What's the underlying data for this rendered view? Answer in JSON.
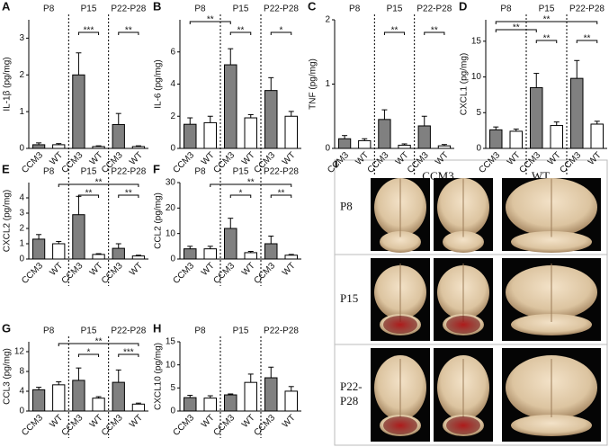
{
  "chart_data": [
    {
      "type": "bar",
      "label": "A",
      "ylabel": "IL-1β (pg/mg)",
      "groups": [
        "P8",
        "P15",
        "P22-P28"
      ],
      "categories": [
        "CCM3",
        "WT",
        "CCM3",
        "WT",
        "CCM3",
        "WT"
      ],
      "values": [
        0.1,
        0.1,
        2.0,
        0.05,
        0.65,
        0.05
      ],
      "errors": [
        0.05,
        0.03,
        0.6,
        0.02,
        0.3,
        0.02
      ],
      "colors": [
        "#808080",
        "#ffffff",
        "#808080",
        "#ffffff",
        "#808080",
        "#ffffff"
      ],
      "ylim": [
        0,
        3.5
      ],
      "yticks": [
        0,
        1,
        2,
        3
      ],
      "significance": [
        {
          "text": "***",
          "pair": [
            2,
            3
          ]
        },
        {
          "text": "**",
          "pair": [
            4,
            5
          ]
        }
      ]
    },
    {
      "type": "bar",
      "label": "B",
      "ylabel": "IL-6 (pg/mg)",
      "groups": [
        "P8",
        "P15",
        "P22-P28"
      ],
      "categories": [
        "CCM3",
        "WT",
        "CCM3",
        "WT",
        "CCM3",
        "WT"
      ],
      "values": [
        1.5,
        1.6,
        5.2,
        1.9,
        3.6,
        2.0
      ],
      "errors": [
        0.4,
        0.4,
        1.0,
        0.2,
        0.8,
        0.3
      ],
      "colors": [
        "#808080",
        "#ffffff",
        "#808080",
        "#ffffff",
        "#808080",
        "#ffffff"
      ],
      "ylim": [
        0,
        8
      ],
      "yticks": [
        0,
        2,
        4,
        6
      ],
      "significance": [
        {
          "text": "**",
          "pair": [
            0,
            2
          ]
        },
        {
          "text": "**",
          "pair": [
            2,
            3
          ]
        },
        {
          "text": "*",
          "pair": [
            4,
            5
          ]
        }
      ]
    },
    {
      "type": "bar",
      "label": "C",
      "ylabel": "TNF (pg/mg)",
      "groups": [
        "P8",
        "P15",
        "P22-P28"
      ],
      "categories": [
        "CCM3",
        "WT",
        "CCM3",
        "WT",
        "CCM3",
        "WT"
      ],
      "values": [
        0.15,
        0.12,
        0.45,
        0.05,
        0.35,
        0.04
      ],
      "errors": [
        0.05,
        0.03,
        0.15,
        0.02,
        0.15,
        0.02
      ],
      "colors": [
        "#808080",
        "#ffffff",
        "#808080",
        "#ffffff",
        "#808080",
        "#ffffff"
      ],
      "ylim": [
        0,
        2
      ],
      "yticks": [
        0,
        1,
        2
      ],
      "significance": [
        {
          "text": "**",
          "pair": [
            2,
            3
          ]
        },
        {
          "text": "**",
          "pair": [
            4,
            5
          ]
        }
      ]
    },
    {
      "type": "bar",
      "label": "D",
      "ylabel": "CXCL1 (pg/mg)",
      "groups": [
        "P8",
        "P15",
        "P22-P28"
      ],
      "categories": [
        "CCM3",
        "WT",
        "CCM3",
        "WT",
        "CCM3",
        "WT"
      ],
      "values": [
        2.6,
        2.4,
        8.5,
        3.2,
        9.8,
        3.4
      ],
      "errors": [
        0.4,
        0.3,
        2.0,
        0.5,
        2.5,
        0.4
      ],
      "colors": [
        "#808080",
        "#ffffff",
        "#808080",
        "#ffffff",
        "#808080",
        "#ffffff"
      ],
      "ylim": [
        0,
        18
      ],
      "yticks": [
        0,
        5,
        10,
        15
      ],
      "significance": [
        {
          "text": "**",
          "pair": [
            0,
            5
          ]
        },
        {
          "text": "**",
          "pair": [
            0,
            2
          ]
        },
        {
          "text": "**",
          "pair": [
            2,
            3
          ]
        },
        {
          "text": "**",
          "pair": [
            4,
            5
          ]
        }
      ]
    },
    {
      "type": "bar",
      "label": "E",
      "ylabel": "CXCL2 (pg/mg)",
      "groups": [
        "P8",
        "P15",
        "P22-P28"
      ],
      "categories": [
        "CCM3",
        "WT",
        "CCM3",
        "WT",
        "CCM3",
        "WT"
      ],
      "values": [
        1.3,
        1.0,
        2.9,
        0.3,
        0.7,
        0.2
      ],
      "errors": [
        0.3,
        0.15,
        1.2,
        0.05,
        0.3,
        0.05
      ],
      "colors": [
        "#808080",
        "#ffffff",
        "#808080",
        "#ffffff",
        "#808080",
        "#ffffff"
      ],
      "ylim": [
        0,
        5
      ],
      "yticks": [
        0,
        1,
        2,
        3,
        4
      ],
      "significance": [
        {
          "text": "**",
          "pair": [
            1,
            5
          ]
        },
        {
          "text": "**",
          "pair": [
            2,
            3
          ]
        },
        {
          "text": "**",
          "pair": [
            4,
            5
          ]
        }
      ]
    },
    {
      "type": "bar",
      "label": "F",
      "ylabel": "CCL2 (pg/mg)",
      "groups": [
        "P8",
        "P15",
        "P22-P28"
      ],
      "categories": [
        "CCM3",
        "WT",
        "CCM3",
        "WT",
        "CCM3",
        "WT"
      ],
      "values": [
        4,
        4,
        12,
        2.5,
        6,
        1.5
      ],
      "errors": [
        1,
        1,
        4,
        0.5,
        3,
        0.3
      ],
      "colors": [
        "#808080",
        "#ffffff",
        "#808080",
        "#ffffff",
        "#808080",
        "#ffffff"
      ],
      "ylim": [
        0,
        30
      ],
      "yticks": [
        0,
        10,
        20,
        30
      ],
      "significance": [
        {
          "text": "**",
          "pair": [
            1,
            5
          ]
        },
        {
          "text": "*",
          "pair": [
            2,
            3
          ]
        },
        {
          "text": "**",
          "pair": [
            4,
            5
          ]
        }
      ]
    },
    {
      "type": "bar",
      "label": "G",
      "ylabel": "CCL3 (pg/mg)",
      "groups": [
        "P8",
        "P15",
        "P22-P28"
      ],
      "categories": [
        "CCM3",
        "WT",
        "CCM3",
        "WT",
        "CCM3",
        "WT"
      ],
      "values": [
        4.3,
        5.3,
        6.2,
        2.6,
        5.8,
        1.4
      ],
      "errors": [
        0.5,
        0.6,
        2.5,
        0.3,
        2.5,
        0.2
      ],
      "colors": [
        "#808080",
        "#ffffff",
        "#808080",
        "#ffffff",
        "#808080",
        "#ffffff"
      ],
      "ylim": [
        0,
        14
      ],
      "yticks": [
        0,
        4,
        8,
        12
      ],
      "significance": [
        {
          "text": "**",
          "pair": [
            1,
            5
          ]
        },
        {
          "text": "*",
          "pair": [
            2,
            3
          ]
        },
        {
          "text": "***",
          "pair": [
            4,
            5
          ]
        }
      ]
    },
    {
      "type": "bar",
      "label": "H",
      "ylabel": "CXCL10 (pg/mg)",
      "groups": [
        "P8",
        "P15",
        "P22-P28"
      ],
      "categories": [
        "CCM3",
        "WT",
        "CCM3",
        "WT",
        "CCM3",
        "WT"
      ],
      "values": [
        2.9,
        2.8,
        3.5,
        6.2,
        7.2,
        4.3
      ],
      "errors": [
        0.5,
        0.5,
        0.2,
        1.8,
        2.3,
        1.0
      ],
      "colors": [
        "#808080",
        "#ffffff",
        "#808080",
        "#ffffff",
        "#808080",
        "#ffffff"
      ],
      "ylim": [
        0,
        15
      ],
      "yticks": [
        0,
        5,
        10,
        15
      ],
      "significance": []
    }
  ],
  "image_panel": {
    "label": "I",
    "columns": [
      "CCM3",
      "WT"
    ],
    "rows": [
      [
        "P8"
      ],
      [
        "P15"
      ],
      [
        "P22-",
        "P28"
      ]
    ]
  }
}
